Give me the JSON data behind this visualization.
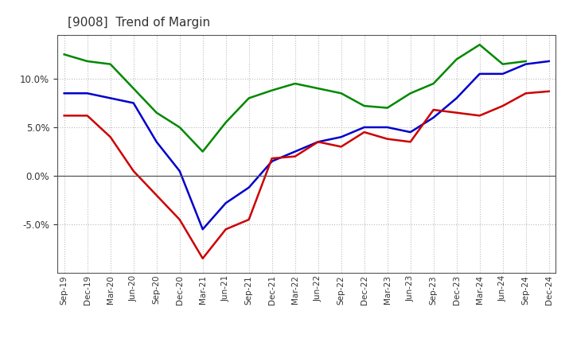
{
  "title": "[9008]  Trend of Margin",
  "x_labels": [
    "Sep-19",
    "Dec-19",
    "Mar-20",
    "Jun-20",
    "Sep-20",
    "Dec-20",
    "Mar-21",
    "Jun-21",
    "Sep-21",
    "Dec-21",
    "Mar-22",
    "Jun-22",
    "Sep-22",
    "Dec-22",
    "Mar-23",
    "Jun-23",
    "Sep-23",
    "Dec-23",
    "Mar-24",
    "Jun-24",
    "Sep-24",
    "Dec-24"
  ],
  "ordinary_income": [
    8.5,
    8.5,
    8.0,
    7.5,
    3.5,
    0.5,
    -5.5,
    -2.8,
    -1.2,
    1.5,
    2.5,
    3.5,
    4.0,
    5.0,
    5.0,
    4.5,
    6.0,
    8.0,
    10.5,
    10.5,
    11.5,
    11.8
  ],
  "net_income": [
    6.2,
    6.2,
    4.0,
    0.5,
    -2.0,
    -4.5,
    -8.5,
    -5.5,
    -4.5,
    1.8,
    2.0,
    3.5,
    3.0,
    4.5,
    3.8,
    3.5,
    6.8,
    6.5,
    6.2,
    7.2,
    8.5,
    8.7
  ],
  "operating_cashflow": [
    12.5,
    11.8,
    11.5,
    9.0,
    6.5,
    5.0,
    2.5,
    5.5,
    8.0,
    8.8,
    9.5,
    9.0,
    8.5,
    7.2,
    7.0,
    8.5,
    9.5,
    12.0,
    13.5,
    11.5,
    11.8,
    null
  ],
  "ylim": [
    -10,
    14.5
  ],
  "yticks": [
    -5.0,
    0.0,
    5.0,
    10.0
  ],
  "line_color_ordinary": "#0000cc",
  "line_color_net": "#cc0000",
  "line_color_cashflow": "#008800",
  "background_color": "#ffffff",
  "grid_color": "#aaaaaa",
  "title_color": "#333333"
}
